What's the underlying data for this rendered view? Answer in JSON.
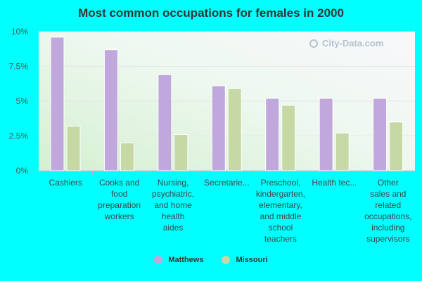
{
  "chart_data": {
    "type": "bar",
    "title": "Most common occupations for females in 2000",
    "categories": [
      "Cashiers",
      "Cooks and food preparation workers",
      "Nursing, psychiatric, and home health aides",
      "Secretarie...",
      "Preschool, kindergarten, elementary, and middle school teachers",
      "Health tec...",
      "Other sales and related occupations, including supervisors"
    ],
    "category_lines": [
      [
        "Cashiers"
      ],
      [
        "Cooks and",
        "food",
        "preparation",
        "workers"
      ],
      [
        "Nursing,",
        "psychiatric,",
        "and home",
        "health",
        "aides"
      ],
      [
        "Secretarie..."
      ],
      [
        "Preschool,",
        "kindergarten,",
        "elementary,",
        "and middle",
        "school",
        "teachers"
      ],
      [
        "Health tec..."
      ],
      [
        "Other",
        "sales and",
        "related",
        "occupations,",
        "including",
        "supervisors"
      ]
    ],
    "series": [
      {
        "name": "Matthews",
        "color": "#c0a8dc",
        "values": [
          9.6,
          8.7,
          6.9,
          6.1,
          5.2,
          5.2,
          5.2
        ]
      },
      {
        "name": "Missouri",
        "color": "#c6d8a4",
        "values": [
          3.2,
          2.0,
          2.6,
          5.9,
          4.7,
          2.7,
          3.5
        ]
      }
    ],
    "ylim": [
      0,
      10
    ],
    "yticks": [
      0,
      2.5,
      5,
      7.5,
      10
    ],
    "ytick_labels": [
      "0%",
      "2.5%",
      "5%",
      "7.5%",
      "10%"
    ],
    "legend_position": "bottom",
    "grid": true
  },
  "watermark": "City-Data.com"
}
